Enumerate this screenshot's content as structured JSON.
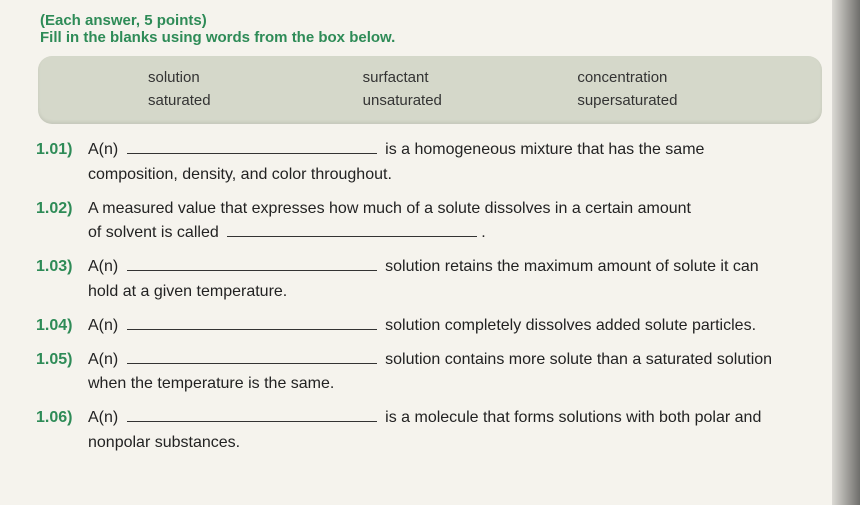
{
  "header": {
    "points": "(Each answer, 5 points)",
    "instruction": "Fill in the blanks using words from the box below."
  },
  "wordbox": {
    "row1": {
      "c1": "solution",
      "c2": "surfactant",
      "c3": "concentration"
    },
    "row2": {
      "c1": "saturated",
      "c2": "unsaturated",
      "c3": "supersaturated"
    }
  },
  "q1": {
    "num": "1.01)",
    "lead": "A(n)",
    "tail1": "is  a  homogeneous  mixture  that  has  the  same",
    "tail2": "composition, density, and color throughout."
  },
  "q2": {
    "num": "1.02)",
    "line1": "A measured value that expresses how much of a solute dissolves in a certain amount",
    "line2a": "of solvent is called",
    "period": "."
  },
  "q3": {
    "num": "1.03)",
    "lead": "A(n)",
    "tail1": "solution retains the maximum amount of solute it can",
    "tail2": "hold at a given temperature."
  },
  "q4": {
    "num": "1.04)",
    "lead": "A(n)",
    "tail": "solution completely dissolves added solute particles."
  },
  "q5": {
    "num": "1.05)",
    "lead": "A(n)",
    "tail1": "solution contains more solute than a saturated solution",
    "tail2": "when the temperature is the same."
  },
  "q6": {
    "num": "1.06)",
    "lead": "A(n)",
    "tail1": "is a molecule that forms solutions with both polar and",
    "tail2": "nonpolar substances."
  },
  "colors": {
    "accent": "#2e8b57",
    "box_bg": "#d5d8ca",
    "page_bg": "#f5f3ed",
    "text": "#2a2a2a"
  },
  "typography": {
    "base_fontsize_pt": 12,
    "header_fontsize_pt": 11
  }
}
